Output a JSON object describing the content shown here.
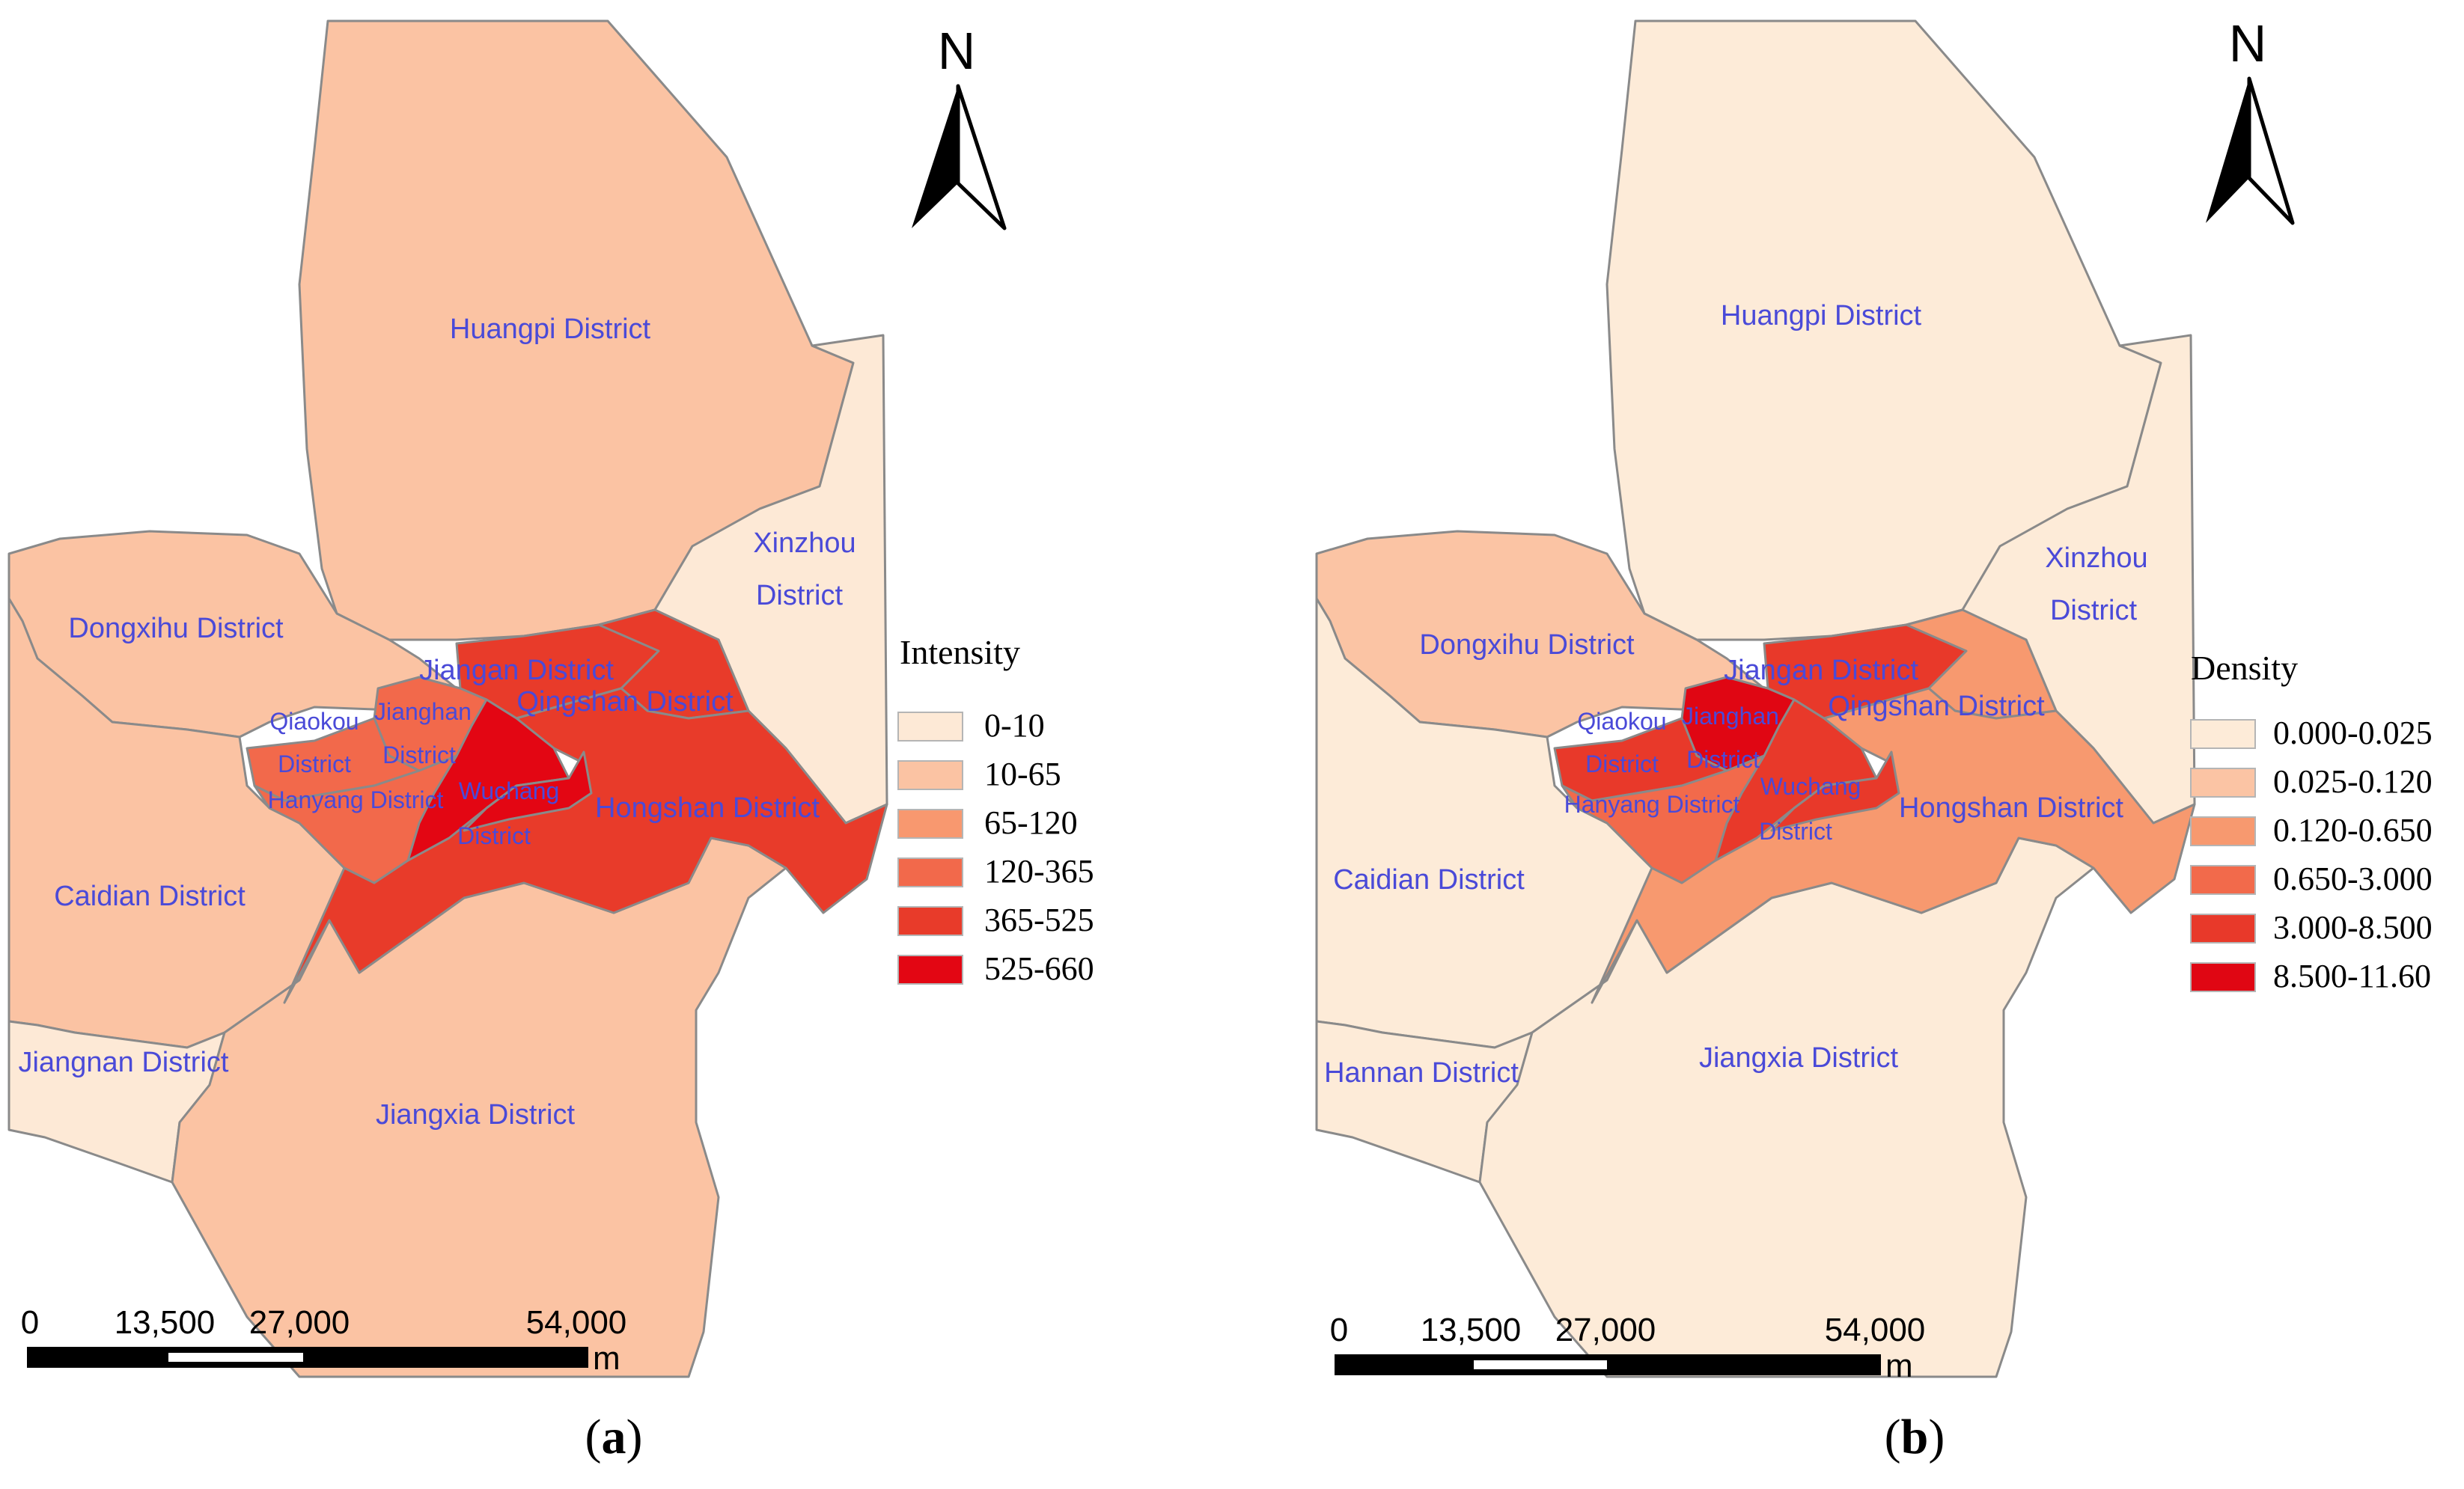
{
  "panels": [
    {
      "id": "a",
      "label_letter": "a",
      "legend": {
        "title": "Intensity",
        "classes": [
          {
            "range": "0-10",
            "color": "#fde9d6"
          },
          {
            "range": "10-65",
            "color": "#fbc3a3"
          },
          {
            "range": "65-120",
            "color": "#f8986f"
          },
          {
            "range": "120-365",
            "color": "#f2694b"
          },
          {
            "range": "365-525",
            "color": "#e83b2a"
          },
          {
            "range": "525-660",
            "color": "#e30613"
          }
        ]
      },
      "districts": [
        {
          "name": "Huangpi District",
          "class": 1
        },
        {
          "name": "Xinzhou District",
          "class": 0
        },
        {
          "name": "Dongxihu District",
          "class": 1
        },
        {
          "name": "Caidian District",
          "class": 1
        },
        {
          "name": "Jiangnan District",
          "class": 0
        },
        {
          "name": "Jiangxia District",
          "class": 1
        },
        {
          "name": "Jiangan District",
          "class": 4
        },
        {
          "name": "Qingshan District",
          "class": 4
        },
        {
          "name": "Hongshan District",
          "class": 4
        },
        {
          "name": "Wuchang District",
          "class": 5
        },
        {
          "name": "Jianghan District",
          "class": 3
        },
        {
          "name": "Qiaokou District",
          "class": 3
        },
        {
          "name": "Hanyang District",
          "class": 3
        }
      ],
      "labels": {
        "huangpi": "Huangpi District",
        "xinzhou_1": "Xinzhou",
        "xinzhou_2": "District",
        "dongxihu": "Dongxihu District",
        "caidian": "Caidian District",
        "southwest": "Jiangnan District",
        "jiangxia": "Jiangxia District",
        "jiangan": "Jiangan District",
        "qingshan": "Qingshan District",
        "hongshan": "Hongshan District",
        "qiaokou_1": "Qiaokou",
        "qiaokou_2": "District",
        "jianghan_1": "Jianghan",
        "jianghan_2": "District",
        "hanyang": "Hanyang District",
        "wuchang_1": "Wuchang",
        "wuchang_2": "District"
      },
      "scale": {
        "ticks": [
          "0",
          "13,500",
          "27,000",
          "54,000"
        ],
        "unit": "m"
      },
      "north": "N"
    },
    {
      "id": "b",
      "label_letter": "b",
      "legend": {
        "title": "Density",
        "classes": [
          {
            "range": "0.000-0.025",
            "color": "#fdebd8"
          },
          {
            "range": "0.025-0.120",
            "color": "#fbc4a4"
          },
          {
            "range": "0.120-0.650",
            "color": "#f7996f"
          },
          {
            "range": "0.650-3.000",
            "color": "#f26a4b"
          },
          {
            "range": "3.000-8.500",
            "color": "#e8392a"
          },
          {
            "range": "8.500-11.60",
            "color": "#e00613"
          }
        ]
      },
      "districts": [
        {
          "name": "Huangpi District",
          "class": 0
        },
        {
          "name": "Xinzhou District",
          "class": 0
        },
        {
          "name": "Dongxihu District",
          "class": 1
        },
        {
          "name": "Caidian District",
          "class": 0
        },
        {
          "name": "Hannan District",
          "class": 0
        },
        {
          "name": "Jiangxia District",
          "class": 0
        },
        {
          "name": "Jiangan District",
          "class": 4
        },
        {
          "name": "Qingshan District",
          "class": 2
        },
        {
          "name": "Hongshan District",
          "class": 2
        },
        {
          "name": "Wuchang District",
          "class": 4
        },
        {
          "name": "Jianghan District",
          "class": 5
        },
        {
          "name": "Qiaokou District",
          "class": 4
        },
        {
          "name": "Hanyang District",
          "class": 3
        }
      ],
      "labels": {
        "huangpi": "Huangpi District",
        "xinzhou_1": "Xinzhou",
        "xinzhou_2": "District",
        "dongxihu": "Dongxihu District",
        "caidian": "Caidian District",
        "southwest": "Hannan District",
        "jiangxia": "Jiangxia District",
        "jiangan": "Jiangan District",
        "qingshan": "Qingshan District",
        "hongshan": "Hongshan District",
        "qiaokou_1": "Qiaokou",
        "qiaokou_2": "District",
        "jianghan_1": "Jianghan",
        "jianghan_2": "District",
        "hanyang": "Hanyang District",
        "wuchang_1": "Wuchang",
        "wuchang_2": "District"
      },
      "scale": {
        "ticks": [
          "0",
          "13,500",
          "27,000",
          "54,000"
        ],
        "unit": "m"
      },
      "north": "N"
    }
  ]
}
